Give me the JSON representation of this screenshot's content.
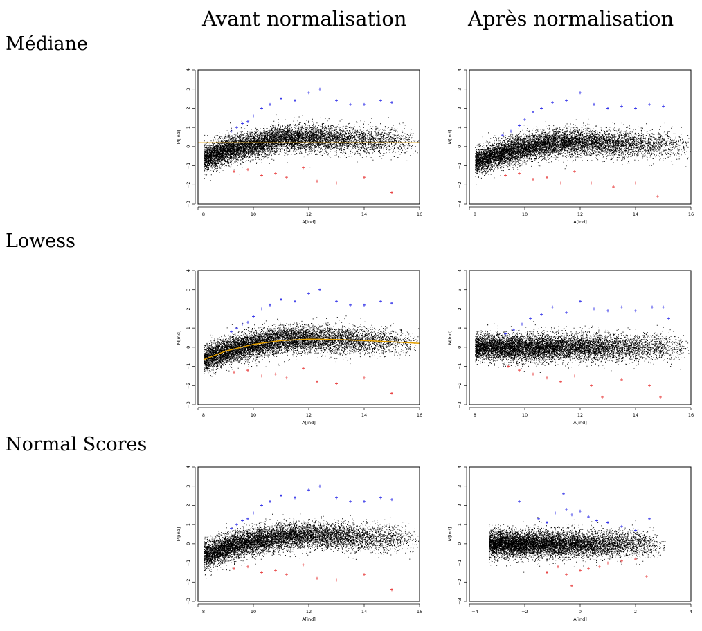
{
  "header": {
    "columns": [
      "Avant normalisation",
      "Après normalisation"
    ],
    "rows": [
      "Médiane",
      "Lowess",
      "Normal Scores"
    ]
  },
  "colors": {
    "points": "#000000",
    "up": "#2a2ae8",
    "down": "#e83a3a",
    "fit": "#e6a100",
    "frame": "#000000"
  },
  "chart_data": [
    {
      "type": "scatter",
      "panel": "Médiane / Avant normalisation",
      "xlabel": "A[ind]",
      "ylabel": "M[ind]",
      "xlim": [
        8,
        16
      ],
      "ylim": [
        -3,
        4
      ],
      "xticks": [
        8,
        10,
        12,
        14,
        16
      ],
      "yticks": [
        -3,
        -2,
        -1,
        0,
        1,
        2,
        3,
        4
      ],
      "cloud": {
        "count": 9000,
        "x_range": [
          8.2,
          16
        ],
        "trend": [
          [
            8.2,
            -0.6
          ],
          [
            9,
            -0.2
          ],
          [
            10,
            0.15
          ],
          [
            11,
            0.4
          ],
          [
            12,
            0.45
          ],
          [
            13,
            0.4
          ],
          [
            14,
            0.35
          ],
          [
            15,
            0.3
          ],
          [
            16,
            0.2
          ]
        ]
      },
      "fit_line": {
        "kind": "constant",
        "y": 0.2
      },
      "series_up": {
        "marker": "+",
        "points": [
          [
            9.2,
            0.8
          ],
          [
            9.4,
            1.0
          ],
          [
            9.6,
            1.2
          ],
          [
            9.8,
            1.3
          ],
          [
            10.0,
            1.6
          ],
          [
            10.3,
            2.0
          ],
          [
            10.6,
            2.2
          ],
          [
            11.0,
            2.5
          ],
          [
            11.5,
            2.4
          ],
          [
            12.0,
            2.8
          ],
          [
            12.4,
            3.0
          ],
          [
            13.0,
            2.4
          ],
          [
            13.5,
            2.2
          ],
          [
            14.0,
            2.2
          ],
          [
            14.6,
            2.4
          ],
          [
            15.0,
            2.3
          ]
        ]
      },
      "series_down": {
        "marker": "+",
        "points": [
          [
            9.3,
            -1.3
          ],
          [
            9.8,
            -1.2
          ],
          [
            10.3,
            -1.5
          ],
          [
            10.8,
            -1.4
          ],
          [
            11.2,
            -1.6
          ],
          [
            11.8,
            -1.1
          ],
          [
            12.3,
            -1.8
          ],
          [
            13.0,
            -1.9
          ],
          [
            14.0,
            -1.6
          ],
          [
            15.0,
            -2.4
          ]
        ]
      }
    },
    {
      "type": "scatter",
      "panel": "Médiane / Après normalisation",
      "xlabel": "A[ind]",
      "ylabel": "M[ind]",
      "xlim": [
        8,
        16
      ],
      "ylim": [
        -3,
        4
      ],
      "xticks": [
        8,
        10,
        12,
        14,
        16
      ],
      "yticks": [
        -3,
        -2,
        -1,
        0,
        1,
        2,
        3,
        4
      ],
      "cloud": {
        "count": 9000,
        "x_range": [
          8.2,
          16
        ],
        "trend": [
          [
            8.2,
            -0.8
          ],
          [
            9,
            -0.4
          ],
          [
            10,
            -0.05
          ],
          [
            11,
            0.2
          ],
          [
            12,
            0.25
          ],
          [
            13,
            0.2
          ],
          [
            14,
            0.15
          ],
          [
            15,
            0.1
          ],
          [
            16,
            0.0
          ]
        ]
      },
      "fit_line": null,
      "series_up": {
        "marker": "+",
        "points": [
          [
            9.2,
            0.6
          ],
          [
            9.5,
            0.8
          ],
          [
            9.8,
            1.1
          ],
          [
            10.0,
            1.4
          ],
          [
            10.3,
            1.8
          ],
          [
            10.6,
            2.0
          ],
          [
            11.0,
            2.3
          ],
          [
            11.5,
            2.4
          ],
          [
            12.0,
            2.8
          ],
          [
            12.5,
            2.2
          ],
          [
            13.0,
            2.0
          ],
          [
            13.5,
            2.1
          ],
          [
            14.0,
            2.0
          ],
          [
            14.5,
            2.2
          ],
          [
            15.0,
            2.1
          ]
        ]
      },
      "series_down": {
        "marker": "+",
        "points": [
          [
            9.3,
            -1.5
          ],
          [
            9.8,
            -1.4
          ],
          [
            10.3,
            -1.7
          ],
          [
            10.8,
            -1.6
          ],
          [
            11.3,
            -1.9
          ],
          [
            11.8,
            -1.3
          ],
          [
            12.4,
            -1.9
          ],
          [
            13.2,
            -2.1
          ],
          [
            14.0,
            -1.9
          ],
          [
            14.8,
            -2.6
          ]
        ]
      }
    },
    {
      "type": "scatter",
      "panel": "Lowess / Avant normalisation",
      "xlabel": "A[ind]",
      "ylabel": "M[ind]",
      "xlim": [
        8,
        16
      ],
      "ylim": [
        -3,
        4
      ],
      "xticks": [
        8,
        10,
        12,
        14,
        16
      ],
      "yticks": [
        -3,
        -2,
        -1,
        0,
        1,
        2,
        3,
        4
      ],
      "cloud": {
        "count": 9000,
        "x_range": [
          8.2,
          16
        ],
        "trend": [
          [
            8.2,
            -0.6
          ],
          [
            9,
            -0.2
          ],
          [
            10,
            0.15
          ],
          [
            11,
            0.4
          ],
          [
            12,
            0.45
          ],
          [
            13,
            0.4
          ],
          [
            14,
            0.35
          ],
          [
            15,
            0.3
          ],
          [
            16,
            0.2
          ]
        ]
      },
      "fit_line": {
        "kind": "curve",
        "points": [
          [
            8.2,
            -0.65
          ],
          [
            9,
            -0.2
          ],
          [
            10,
            0.15
          ],
          [
            11,
            0.35
          ],
          [
            12,
            0.42
          ],
          [
            13,
            0.4
          ],
          [
            14,
            0.35
          ],
          [
            15,
            0.28
          ],
          [
            16,
            0.2
          ]
        ]
      },
      "series_up": {
        "marker": "+",
        "points": [
          [
            9.2,
            0.8
          ],
          [
            9.4,
            1.0
          ],
          [
            9.6,
            1.2
          ],
          [
            9.8,
            1.3
          ],
          [
            10.0,
            1.6
          ],
          [
            10.3,
            2.0
          ],
          [
            10.6,
            2.2
          ],
          [
            11.0,
            2.5
          ],
          [
            11.5,
            2.4
          ],
          [
            12.0,
            2.8
          ],
          [
            12.4,
            3.0
          ],
          [
            13.0,
            2.4
          ],
          [
            13.5,
            2.2
          ],
          [
            14.0,
            2.2
          ],
          [
            14.6,
            2.4
          ],
          [
            15.0,
            2.3
          ]
        ]
      },
      "series_down": {
        "marker": "+",
        "points": [
          [
            9.3,
            -1.3
          ],
          [
            9.8,
            -1.2
          ],
          [
            10.3,
            -1.5
          ],
          [
            10.8,
            -1.4
          ],
          [
            11.2,
            -1.6
          ],
          [
            11.8,
            -1.1
          ],
          [
            12.3,
            -1.8
          ],
          [
            13.0,
            -1.9
          ],
          [
            14.0,
            -1.6
          ],
          [
            15.0,
            -2.4
          ]
        ]
      }
    },
    {
      "type": "scatter",
      "panel": "Lowess / Après normalisation",
      "xlabel": "A[ind]",
      "ylabel": "M[ind]",
      "xlim": [
        8,
        16
      ],
      "ylim": [
        -3,
        4
      ],
      "xticks": [
        8,
        10,
        12,
        14,
        16
      ],
      "yticks": [
        -3,
        -2,
        -1,
        0,
        1,
        2,
        3,
        4
      ],
      "cloud": {
        "count": 9000,
        "x_range": [
          8.2,
          16
        ],
        "trend": [
          [
            8.2,
            0.0
          ],
          [
            16,
            0.0
          ]
        ]
      },
      "fit_line": null,
      "series_up": {
        "marker": "+",
        "points": [
          [
            9.3,
            0.7
          ],
          [
            9.6,
            0.9
          ],
          [
            9.9,
            1.2
          ],
          [
            10.2,
            1.5
          ],
          [
            10.6,
            1.7
          ],
          [
            11.0,
            2.1
          ],
          [
            11.5,
            1.8
          ],
          [
            12.0,
            2.4
          ],
          [
            12.5,
            2.0
          ],
          [
            13.0,
            1.9
          ],
          [
            13.5,
            2.1
          ],
          [
            14.0,
            1.9
          ],
          [
            14.6,
            2.1
          ],
          [
            15.0,
            2.1
          ],
          [
            15.2,
            1.5
          ]
        ]
      },
      "series_down": {
        "marker": "+",
        "points": [
          [
            9.4,
            -1.0
          ],
          [
            9.8,
            -1.2
          ],
          [
            10.3,
            -1.4
          ],
          [
            10.8,
            -1.6
          ],
          [
            11.3,
            -1.8
          ],
          [
            11.8,
            -1.5
          ],
          [
            12.4,
            -2.0
          ],
          [
            12.8,
            -2.6
          ],
          [
            13.5,
            -1.7
          ],
          [
            14.5,
            -2.0
          ],
          [
            14.9,
            -2.6
          ]
        ]
      }
    },
    {
      "type": "scatter",
      "panel": "Normal Scores / Avant normalisation",
      "xlabel": "A[ind]",
      "ylabel": "M[ind]",
      "xlim": [
        8,
        16
      ],
      "ylim": [
        -3,
        4
      ],
      "xticks": [
        8,
        10,
        12,
        14,
        16
      ],
      "yticks": [
        -3,
        -2,
        -1,
        0,
        1,
        2,
        3,
        4
      ],
      "cloud": {
        "count": 9000,
        "x_range": [
          8.2,
          16
        ],
        "trend": [
          [
            8.2,
            -0.6
          ],
          [
            9,
            -0.2
          ],
          [
            10,
            0.15
          ],
          [
            11,
            0.4
          ],
          [
            12,
            0.45
          ],
          [
            13,
            0.4
          ],
          [
            14,
            0.35
          ],
          [
            15,
            0.3
          ],
          [
            16,
            0.2
          ]
        ]
      },
      "fit_line": null,
      "series_up": {
        "marker": "+",
        "points": [
          [
            9.2,
            0.8
          ],
          [
            9.4,
            1.0
          ],
          [
            9.6,
            1.2
          ],
          [
            9.8,
            1.3
          ],
          [
            10.0,
            1.6
          ],
          [
            10.3,
            2.0
          ],
          [
            10.6,
            2.2
          ],
          [
            11.0,
            2.5
          ],
          [
            11.5,
            2.4
          ],
          [
            12.0,
            2.8
          ],
          [
            12.4,
            3.0
          ],
          [
            13.0,
            2.4
          ],
          [
            13.5,
            2.2
          ],
          [
            14.0,
            2.2
          ],
          [
            14.6,
            2.4
          ],
          [
            15.0,
            2.3
          ]
        ]
      },
      "series_down": {
        "marker": "+",
        "points": [
          [
            9.3,
            -1.3
          ],
          [
            9.8,
            -1.2
          ],
          [
            10.3,
            -1.5
          ],
          [
            10.8,
            -1.4
          ],
          [
            11.2,
            -1.6
          ],
          [
            11.8,
            -1.1
          ],
          [
            12.3,
            -1.8
          ],
          [
            13.0,
            -1.9
          ],
          [
            14.0,
            -1.6
          ],
          [
            15.0,
            -2.4
          ]
        ]
      }
    },
    {
      "type": "scatter",
      "panel": "Normal Scores / Après normalisation",
      "xlabel": "A[ind]",
      "ylabel": "M[ind]",
      "xlim": [
        -4,
        4
      ],
      "ylim": [
        -3,
        4
      ],
      "xticks": [
        -4,
        -2,
        0,
        2,
        4
      ],
      "yticks": [
        -3,
        -2,
        -1,
        0,
        1,
        2,
        3,
        4
      ],
      "cloud": {
        "count": 9000,
        "x_range": [
          -3.3,
          3.1
        ],
        "trend": [
          [
            -3.3,
            0.0
          ],
          [
            3.1,
            0.0
          ]
        ]
      },
      "fit_line": null,
      "series_up": {
        "marker": "+",
        "points": [
          [
            -2.2,
            2.2
          ],
          [
            -1.5,
            1.3
          ],
          [
            -1.2,
            1.1
          ],
          [
            -0.9,
            1.6
          ],
          [
            -0.6,
            2.6
          ],
          [
            -0.5,
            1.8
          ],
          [
            -0.3,
            1.5
          ],
          [
            0.0,
            1.7
          ],
          [
            0.3,
            1.4
          ],
          [
            0.6,
            1.2
          ],
          [
            1.0,
            1.1
          ],
          [
            1.5,
            0.9
          ],
          [
            2.0,
            0.7
          ],
          [
            2.5,
            1.3
          ]
        ]
      },
      "series_down": {
        "marker": "+",
        "points": [
          [
            -1.2,
            -1.5
          ],
          [
            -0.8,
            -1.2
          ],
          [
            -0.5,
            -1.6
          ],
          [
            -0.3,
            -2.2
          ],
          [
            0.0,
            -1.4
          ],
          [
            0.3,
            -1.3
          ],
          [
            0.7,
            -1.2
          ],
          [
            1.0,
            -1.0
          ],
          [
            1.5,
            -0.9
          ],
          [
            2.0,
            -0.8
          ],
          [
            2.4,
            -1.7
          ]
        ]
      }
    }
  ]
}
